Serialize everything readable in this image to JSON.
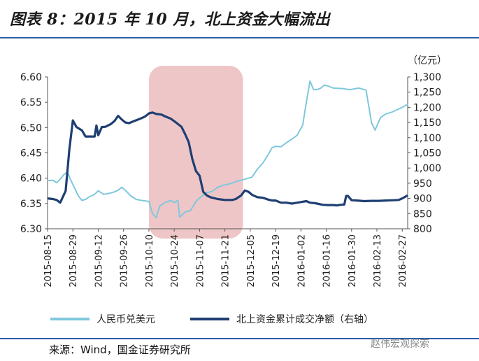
{
  "header": {
    "title": "图表 8：2015 年 10 月，北上资金大幅流出"
  },
  "footer": {
    "source": "来源：Wind，国金证券研究所",
    "watermark": "赵伟宏观探索"
  },
  "colors": {
    "usdcny": "#7fc8dc",
    "northbound": "#1f3f73",
    "highlight": "#e9b3b5",
    "rule": "#2a5da8"
  },
  "chart_data": {
    "type": "line",
    "title": "",
    "x_ticks": [
      "2015-08-15",
      "2015-08-29",
      "2015-09-12",
      "2015-09-26",
      "2015-10-10",
      "2015-10-24",
      "2015-11-07",
      "2015-11-21",
      "2015-12-05",
      "2015-12-19",
      "2016-01-02",
      "2016-01-16",
      "2016-01-30",
      "2016-02-13",
      "2016-02-27"
    ],
    "x_range": [
      "2015-08-15",
      "2016-03-01"
    ],
    "y_left": {
      "range": [
        6.3,
        6.6
      ],
      "ticks": [
        "6.30",
        "6.35",
        "6.40",
        "6.45",
        "6.50",
        "6.55",
        "6.60"
      ]
    },
    "y_right": {
      "label": "（亿元）",
      "range": [
        800,
        1300
      ],
      "ticks": [
        "800",
        "850",
        "900",
        "950",
        "1,000",
        "1,050",
        "1,100",
        "1,150",
        "1,200",
        "1,250",
        "1,300"
      ]
    },
    "highlight": {
      "x": [
        "2015-10-10",
        "2015-12-01"
      ]
    },
    "series": [
      {
        "name": "人民币兑美元",
        "axis": "left",
        "color": "#7fc8dc",
        "points": [
          [
            "2015-08-15",
            6.395
          ],
          [
            "2015-08-18",
            6.396
          ],
          [
            "2015-08-20",
            6.391
          ],
          [
            "2015-08-22",
            6.398
          ],
          [
            "2015-08-24",
            6.407
          ],
          [
            "2015-08-26",
            6.412
          ],
          [
            "2015-08-28",
            6.395
          ],
          [
            "2015-08-30",
            6.38
          ],
          [
            "2015-09-01",
            6.365
          ],
          [
            "2015-09-03",
            6.356
          ],
          [
            "2015-09-05",
            6.358
          ],
          [
            "2015-09-07",
            6.363
          ],
          [
            "2015-09-10",
            6.368
          ],
          [
            "2015-09-12",
            6.375
          ],
          [
            "2015-09-15",
            6.368
          ],
          [
            "2015-09-18",
            6.37
          ],
          [
            "2015-09-21",
            6.373
          ],
          [
            "2015-09-23",
            6.376
          ],
          [
            "2015-09-25",
            6.382
          ],
          [
            "2015-09-27",
            6.376
          ],
          [
            "2015-09-30",
            6.365
          ],
          [
            "2015-10-03",
            6.358
          ],
          [
            "2015-10-06",
            6.356
          ],
          [
            "2015-10-10",
            6.354
          ],
          [
            "2015-10-12",
            6.33
          ],
          [
            "2015-10-14",
            6.322
          ],
          [
            "2015-10-16",
            6.345
          ],
          [
            "2015-10-19",
            6.352
          ],
          [
            "2015-10-22",
            6.356
          ],
          [
            "2015-10-24",
            6.352
          ],
          [
            "2015-10-26",
            6.356
          ],
          [
            "2015-10-27",
            6.323
          ],
          [
            "2015-10-28",
            6.326
          ],
          [
            "2015-10-30",
            6.333
          ],
          [
            "2015-11-02",
            6.336
          ],
          [
            "2015-11-05",
            6.354
          ],
          [
            "2015-11-08",
            6.364
          ],
          [
            "2015-11-11",
            6.371
          ],
          [
            "2015-11-14",
            6.374
          ],
          [
            "2015-11-17",
            6.382
          ],
          [
            "2015-11-20",
            6.386
          ],
          [
            "2015-11-24",
            6.389
          ],
          [
            "2015-11-27",
            6.393
          ],
          [
            "2015-12-01",
            6.397
          ],
          [
            "2015-12-04",
            6.4
          ],
          [
            "2015-12-06",
            6.402
          ],
          [
            "2015-12-09",
            6.418
          ],
          [
            "2015-12-12",
            6.43
          ],
          [
            "2015-12-15",
            6.447
          ],
          [
            "2015-12-17",
            6.46
          ],
          [
            "2015-12-19",
            6.463
          ],
          [
            "2015-12-22",
            6.462
          ],
          [
            "2015-12-25",
            6.47
          ],
          [
            "2015-12-28",
            6.477
          ],
          [
            "2015-12-31",
            6.485
          ],
          [
            "2016-01-03",
            6.505
          ],
          [
            "2016-01-05",
            6.55
          ],
          [
            "2016-01-07",
            6.592
          ],
          [
            "2016-01-09",
            6.575
          ],
          [
            "2016-01-11",
            6.575
          ],
          [
            "2016-01-13",
            6.578
          ],
          [
            "2016-01-15",
            6.584
          ],
          [
            "2016-01-17",
            6.582
          ],
          [
            "2016-01-20",
            6.578
          ],
          [
            "2016-01-25",
            6.577
          ],
          [
            "2016-01-29",
            6.575
          ],
          [
            "2016-02-03",
            6.578
          ],
          [
            "2016-02-07",
            6.574
          ],
          [
            "2016-02-10",
            6.51
          ],
          [
            "2016-02-12",
            6.495
          ],
          [
            "2016-02-15",
            6.52
          ],
          [
            "2016-02-18",
            6.527
          ],
          [
            "2016-02-21",
            6.53
          ],
          [
            "2016-02-24",
            6.535
          ],
          [
            "2016-02-27",
            6.54
          ],
          [
            "2016-03-01",
            6.546
          ]
        ]
      },
      {
        "name": "北上资金累计成交净额（右轴）",
        "axis": "right",
        "color": "#1f3f73",
        "points": [
          [
            "2015-08-15",
            900
          ],
          [
            "2015-08-18",
            898
          ],
          [
            "2015-08-20",
            895
          ],
          [
            "2015-08-22",
            886
          ],
          [
            "2015-08-25",
            925
          ],
          [
            "2015-08-27",
            1060
          ],
          [
            "2015-08-29",
            1157
          ],
          [
            "2015-08-31",
            1135
          ],
          [
            "2015-09-03",
            1124
          ],
          [
            "2015-09-05",
            1104
          ],
          [
            "2015-09-07",
            1104
          ],
          [
            "2015-09-10",
            1104
          ],
          [
            "2015-09-11",
            1140
          ],
          [
            "2015-09-12",
            1108
          ],
          [
            "2015-09-14",
            1135
          ],
          [
            "2015-09-16",
            1136
          ],
          [
            "2015-09-19",
            1145
          ],
          [
            "2015-09-21",
            1155
          ],
          [
            "2015-09-23",
            1172
          ],
          [
            "2015-09-25",
            1160
          ],
          [
            "2015-09-27",
            1150
          ],
          [
            "2015-09-29",
            1148
          ],
          [
            "2015-10-02",
            1155
          ],
          [
            "2015-10-05",
            1162
          ],
          [
            "2015-10-08",
            1170
          ],
          [
            "2015-10-10",
            1180
          ],
          [
            "2015-10-12",
            1183
          ],
          [
            "2015-10-14",
            1178
          ],
          [
            "2015-10-17",
            1176
          ],
          [
            "2015-10-19",
            1170
          ],
          [
            "2015-10-22",
            1163
          ],
          [
            "2015-10-25",
            1150
          ],
          [
            "2015-10-28",
            1136
          ],
          [
            "2015-10-30",
            1112
          ],
          [
            "2015-11-01",
            1085
          ],
          [
            "2015-11-03",
            1030
          ],
          [
            "2015-11-05",
            990
          ],
          [
            "2015-11-07",
            975
          ],
          [
            "2015-11-09",
            922
          ],
          [
            "2015-11-11",
            910
          ],
          [
            "2015-11-13",
            904
          ],
          [
            "2015-11-17",
            898
          ],
          [
            "2015-11-21",
            895
          ],
          [
            "2015-11-25",
            895
          ],
          [
            "2015-11-27",
            898
          ],
          [
            "2015-11-30",
            910
          ],
          [
            "2015-12-02",
            926
          ],
          [
            "2015-12-04",
            922
          ],
          [
            "2015-12-06",
            912
          ],
          [
            "2015-12-09",
            904
          ],
          [
            "2015-12-12",
            902
          ],
          [
            "2015-12-15",
            896
          ],
          [
            "2015-12-17",
            893
          ],
          [
            "2015-12-19",
            893
          ],
          [
            "2015-12-22",
            886
          ],
          [
            "2015-12-25",
            886
          ],
          [
            "2015-12-28",
            883
          ],
          [
            "2015-12-31",
            886
          ],
          [
            "2016-01-02",
            888
          ],
          [
            "2016-01-05",
            891
          ],
          [
            "2016-01-07",
            886
          ],
          [
            "2016-01-10",
            884
          ],
          [
            "2016-01-14",
            879
          ],
          [
            "2016-01-17",
            878
          ],
          [
            "2016-01-20",
            878
          ],
          [
            "2016-01-22",
            877
          ],
          [
            "2016-01-24",
            879
          ],
          [
            "2016-01-26",
            880
          ],
          [
            "2016-01-27",
            908
          ],
          [
            "2016-01-28",
            908
          ],
          [
            "2016-01-30",
            894
          ],
          [
            "2016-02-02",
            893
          ],
          [
            "2016-02-06",
            891
          ],
          [
            "2016-02-10",
            892
          ],
          [
            "2016-02-14",
            892
          ],
          [
            "2016-02-18",
            893
          ],
          [
            "2016-02-22",
            894
          ],
          [
            "2016-02-25",
            895
          ],
          [
            "2016-02-27",
            900
          ],
          [
            "2016-03-01",
            910
          ]
        ]
      }
    ]
  }
}
